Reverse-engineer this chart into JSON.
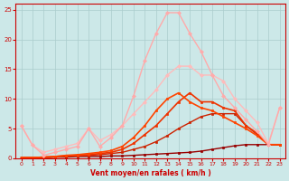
{
  "background_color": "#cce8e8",
  "grid_color": "#aacccc",
  "xlabel": "Vent moyen/en rafales ( km/h )",
  "xlabel_color": "#cc0000",
  "tick_color": "#cc0000",
  "xlim": [
    -0.5,
    23.5
  ],
  "ylim": [
    0,
    26
  ],
  "yticks": [
    0,
    5,
    10,
    15,
    20,
    25
  ],
  "xticks": [
    0,
    1,
    2,
    3,
    4,
    5,
    6,
    7,
    8,
    9,
    10,
    11,
    12,
    13,
    14,
    15,
    16,
    17,
    18,
    19,
    20,
    21,
    22,
    23
  ],
  "series": [
    {
      "x": [
        0,
        1,
        2,
        3,
        4,
        5,
        6,
        7,
        8,
        9,
        10,
        11,
        12,
        13,
        14,
        15,
        16,
        17,
        18,
        19,
        20,
        21,
        22,
        23
      ],
      "y": [
        0.1,
        0.1,
        0.1,
        0.2,
        0.2,
        0.3,
        0.3,
        0.3,
        0.4,
        0.4,
        0.5,
        0.6,
        0.7,
        0.8,
        0.9,
        1.0,
        1.2,
        1.5,
        1.8,
        2.1,
        2.3,
        2.3,
        2.3,
        2.3
      ],
      "color": "#990000",
      "marker": "s",
      "lw": 1.0,
      "ms": 2
    },
    {
      "x": [
        0,
        1,
        2,
        3,
        4,
        5,
        6,
        7,
        8,
        9,
        10,
        11,
        12,
        13,
        14,
        15,
        16,
        17,
        18,
        19,
        20,
        21,
        22,
        23
      ],
      "y": [
        0.1,
        0.1,
        0.1,
        0.2,
        0.3,
        0.4,
        0.5,
        0.6,
        0.8,
        1.0,
        1.5,
        2.0,
        2.8,
        3.8,
        5.0,
        6.0,
        7.0,
        7.5,
        7.5,
        7.5,
        5.5,
        4.0,
        2.3,
        2.3
      ],
      "color": "#cc2200",
      "marker": "s",
      "lw": 1.0,
      "ms": 2
    },
    {
      "x": [
        0,
        1,
        2,
        3,
        4,
        5,
        6,
        7,
        8,
        9,
        10,
        11,
        12,
        13,
        14,
        15,
        16,
        17,
        18,
        19,
        20,
        21,
        22,
        23
      ],
      "y": [
        0.1,
        0.1,
        0.2,
        0.3,
        0.4,
        0.5,
        0.6,
        0.8,
        1.0,
        1.5,
        2.5,
        4.0,
        5.5,
        7.5,
        9.5,
        11.0,
        9.5,
        9.5,
        8.5,
        8.0,
        5.5,
        4.2,
        2.3,
        2.3
      ],
      "color": "#ee3300",
      "marker": "s",
      "lw": 1.2,
      "ms": 2
    },
    {
      "x": [
        0,
        1,
        2,
        3,
        4,
        5,
        6,
        7,
        8,
        9,
        10,
        11,
        12,
        13,
        14,
        15,
        16,
        17,
        18,
        19,
        20,
        21,
        22,
        23
      ],
      "y": [
        0.1,
        0.1,
        0.2,
        0.3,
        0.5,
        0.6,
        0.8,
        1.0,
        1.3,
        2.0,
        3.5,
        5.5,
        8.0,
        10.0,
        11.0,
        9.5,
        8.5,
        8.0,
        7.0,
        6.0,
        5.0,
        3.8,
        2.3,
        2.3
      ],
      "color": "#ff4400",
      "marker": "s",
      "lw": 1.2,
      "ms": 2
    },
    {
      "x": [
        0,
        1,
        2,
        3,
        4,
        5,
        6,
        7,
        8,
        9,
        10,
        11,
        12,
        13,
        14,
        15,
        16,
        17,
        18,
        19,
        20,
        21,
        22,
        23
      ],
      "y": [
        5.5,
        2.2,
        1.0,
        1.5,
        2.0,
        2.5,
        5.0,
        3.0,
        4.0,
        5.5,
        7.5,
        9.5,
        11.5,
        14.0,
        15.5,
        15.5,
        14.0,
        14.0,
        13.0,
        10.0,
        8.0,
        6.0,
        2.5,
        8.5
      ],
      "color": "#ffbbbb",
      "marker": "D",
      "lw": 1.0,
      "ms": 2
    },
    {
      "x": [
        0,
        1,
        2,
        3,
        4,
        5,
        6,
        7,
        8,
        9,
        10,
        11,
        12,
        13,
        14,
        15,
        16,
        17,
        18,
        19,
        20,
        21,
        22,
        23
      ],
      "y": [
        5.5,
        2.2,
        0.5,
        1.0,
        1.5,
        2.0,
        5.0,
        2.0,
        3.5,
        5.5,
        10.5,
        16.5,
        21.0,
        24.5,
        24.5,
        21.0,
        18.0,
        14.0,
        10.5,
        8.5,
        6.5,
        4.5,
        2.3,
        8.5
      ],
      "color": "#ffaaaa",
      "marker": "D",
      "lw": 1.0,
      "ms": 2
    }
  ]
}
